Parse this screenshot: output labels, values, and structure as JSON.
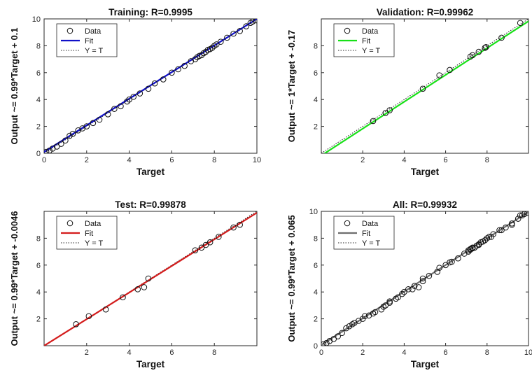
{
  "chart_data": [
    {
      "type": "scatter",
      "title": "Training: R=0.9995",
      "xlabel": "Target",
      "ylabel": "Output ~= 0.99*Target + 0.1",
      "xlim": [
        0,
        10
      ],
      "ylim": [
        0,
        10
      ],
      "xticks": [
        0,
        2,
        4,
        6,
        8,
        10
      ],
      "yticks": [
        0,
        2,
        4,
        6,
        8,
        10
      ],
      "legend": {
        "placement": "top-left",
        "entries": [
          "Data",
          "Fit",
          "Y = T"
        ]
      },
      "fit": {
        "slope": 0.99,
        "intercept": 0.1,
        "color": "#1010c8"
      },
      "points": [
        [
          0.1,
          0.1
        ],
        [
          0.25,
          0.2
        ],
        [
          0.4,
          0.35
        ],
        [
          0.6,
          0.5
        ],
        [
          0.8,
          0.7
        ],
        [
          1.0,
          0.95
        ],
        [
          1.2,
          1.3
        ],
        [
          1.35,
          1.45
        ],
        [
          1.6,
          1.7
        ],
        [
          1.8,
          1.85
        ],
        [
          2.0,
          2.0
        ],
        [
          2.3,
          2.25
        ],
        [
          2.6,
          2.5
        ],
        [
          3.0,
          2.9
        ],
        [
          3.3,
          3.3
        ],
        [
          3.6,
          3.5
        ],
        [
          3.9,
          3.85
        ],
        [
          4.0,
          4.0
        ],
        [
          4.2,
          4.2
        ],
        [
          4.5,
          4.45
        ],
        [
          4.9,
          4.8
        ],
        [
          5.2,
          5.2
        ],
        [
          5.6,
          5.5
        ],
        [
          6.0,
          6.0
        ],
        [
          6.3,
          6.25
        ],
        [
          6.6,
          6.5
        ],
        [
          6.9,
          6.85
        ],
        [
          7.1,
          7.0
        ],
        [
          7.2,
          7.15
        ],
        [
          7.3,
          7.25
        ],
        [
          7.4,
          7.3
        ],
        [
          7.5,
          7.45
        ],
        [
          7.6,
          7.55
        ],
        [
          7.7,
          7.7
        ],
        [
          7.8,
          7.75
        ],
        [
          7.9,
          7.85
        ],
        [
          8.0,
          8.0
        ],
        [
          8.1,
          8.1
        ],
        [
          8.3,
          8.3
        ],
        [
          8.6,
          8.6
        ],
        [
          8.9,
          8.9
        ],
        [
          9.2,
          9.1
        ],
        [
          9.5,
          9.45
        ],
        [
          9.7,
          9.7
        ],
        [
          9.8,
          9.8
        ],
        [
          9.95,
          9.9
        ]
      ]
    },
    {
      "type": "scatter",
      "title": "Validation: R=0.99962",
      "xlabel": "Target",
      "ylabel": "Output ~= 1*Target + -0.17",
      "xlim": [
        0,
        10
      ],
      "ylim": [
        0,
        10
      ],
      "xticks": [
        2,
        4,
        6,
        8
      ],
      "yticks": [
        2,
        4,
        6,
        8
      ],
      "legend": {
        "placement": "top-left",
        "entries": [
          "Data",
          "Fit",
          "Y = T"
        ]
      },
      "fit": {
        "slope": 1.0,
        "intercept": -0.17,
        "color": "#18e018"
      },
      "points": [
        [
          2.5,
          2.4
        ],
        [
          3.1,
          3.0
        ],
        [
          3.3,
          3.2
        ],
        [
          4.9,
          4.8
        ],
        [
          5.7,
          5.8
        ],
        [
          6.2,
          6.2
        ],
        [
          7.2,
          7.2
        ],
        [
          7.3,
          7.3
        ],
        [
          7.6,
          7.55
        ],
        [
          7.9,
          7.85
        ],
        [
          7.95,
          7.9
        ],
        [
          8.7,
          8.6
        ],
        [
          9.6,
          9.7
        ]
      ]
    },
    {
      "type": "scatter",
      "title": "Test: R=0.99878",
      "xlabel": "Target",
      "ylabel": "Output ~= 0.99*Target + -0.0046",
      "xlim": [
        0,
        10
      ],
      "ylim": [
        0,
        10
      ],
      "xticks": [
        2,
        4,
        6,
        8
      ],
      "yticks": [
        2,
        4,
        6,
        8
      ],
      "legend": {
        "placement": "top-left",
        "entries": [
          "Data",
          "Fit",
          "Y = T"
        ]
      },
      "fit": {
        "slope": 0.99,
        "intercept": -0.0046,
        "color": "#d41c1c"
      },
      "points": [
        [
          1.5,
          1.6
        ],
        [
          2.1,
          2.2
        ],
        [
          2.9,
          2.7
        ],
        [
          3.7,
          3.6
        ],
        [
          4.4,
          4.2
        ],
        [
          4.7,
          4.35
        ],
        [
          4.9,
          5.0
        ],
        [
          7.1,
          7.1
        ],
        [
          7.4,
          7.3
        ],
        [
          7.6,
          7.5
        ],
        [
          7.8,
          7.7
        ],
        [
          8.2,
          8.1
        ],
        [
          8.9,
          8.8
        ],
        [
          9.2,
          9.0
        ]
      ]
    },
    {
      "type": "scatter",
      "title": "All: R=0.99932",
      "xlabel": "Target",
      "ylabel": "Output ~= 0.99*Target + 0.065",
      "xlim": [
        0,
        10
      ],
      "ylim": [
        0,
        10
      ],
      "xticks": [
        0,
        2,
        4,
        6,
        8,
        10
      ],
      "yticks": [
        0,
        2,
        4,
        6,
        8,
        10
      ],
      "legend": {
        "placement": "top-left",
        "entries": [
          "Data",
          "Fit",
          "Y = T"
        ]
      },
      "fit": {
        "slope": 0.99,
        "intercept": 0.065,
        "color": "#6e6e6e"
      },
      "points": [
        [
          0.1,
          0.1
        ],
        [
          0.25,
          0.2
        ],
        [
          0.4,
          0.35
        ],
        [
          0.6,
          0.5
        ],
        [
          0.8,
          0.7
        ],
        [
          1.0,
          0.95
        ],
        [
          1.2,
          1.3
        ],
        [
          1.35,
          1.45
        ],
        [
          1.5,
          1.6
        ],
        [
          1.6,
          1.7
        ],
        [
          1.8,
          1.85
        ],
        [
          2.0,
          2.0
        ],
        [
          2.1,
          2.2
        ],
        [
          2.3,
          2.25
        ],
        [
          2.5,
          2.4
        ],
        [
          2.6,
          2.5
        ],
        [
          2.9,
          2.7
        ],
        [
          3.0,
          2.9
        ],
        [
          3.1,
          3.0
        ],
        [
          3.3,
          3.2
        ],
        [
          3.3,
          3.3
        ],
        [
          3.6,
          3.5
        ],
        [
          3.7,
          3.6
        ],
        [
          3.9,
          3.85
        ],
        [
          4.0,
          4.0
        ],
        [
          4.2,
          4.2
        ],
        [
          4.4,
          4.2
        ],
        [
          4.5,
          4.45
        ],
        [
          4.7,
          4.35
        ],
        [
          4.9,
          4.8
        ],
        [
          4.9,
          5.0
        ],
        [
          5.2,
          5.2
        ],
        [
          5.6,
          5.5
        ],
        [
          5.7,
          5.8
        ],
        [
          6.0,
          6.0
        ],
        [
          6.2,
          6.2
        ],
        [
          6.3,
          6.25
        ],
        [
          6.6,
          6.5
        ],
        [
          6.9,
          6.85
        ],
        [
          7.1,
          7.0
        ],
        [
          7.1,
          7.1
        ],
        [
          7.2,
          7.15
        ],
        [
          7.2,
          7.2
        ],
        [
          7.3,
          7.25
        ],
        [
          7.3,
          7.3
        ],
        [
          7.4,
          7.3
        ],
        [
          7.5,
          7.45
        ],
        [
          7.6,
          7.5
        ],
        [
          7.6,
          7.55
        ],
        [
          7.7,
          7.7
        ],
        [
          7.8,
          7.75
        ],
        [
          7.9,
          7.85
        ],
        [
          8.0,
          8.0
        ],
        [
          8.1,
          8.1
        ],
        [
          8.2,
          8.1
        ],
        [
          8.3,
          8.3
        ],
        [
          8.6,
          8.6
        ],
        [
          8.7,
          8.6
        ],
        [
          8.9,
          8.8
        ],
        [
          9.2,
          9.0
        ],
        [
          9.2,
          9.1
        ],
        [
          9.5,
          9.45
        ],
        [
          9.6,
          9.7
        ],
        [
          9.7,
          9.7
        ],
        [
          9.8,
          9.8
        ],
        [
          9.95,
          9.9
        ]
      ]
    }
  ]
}
